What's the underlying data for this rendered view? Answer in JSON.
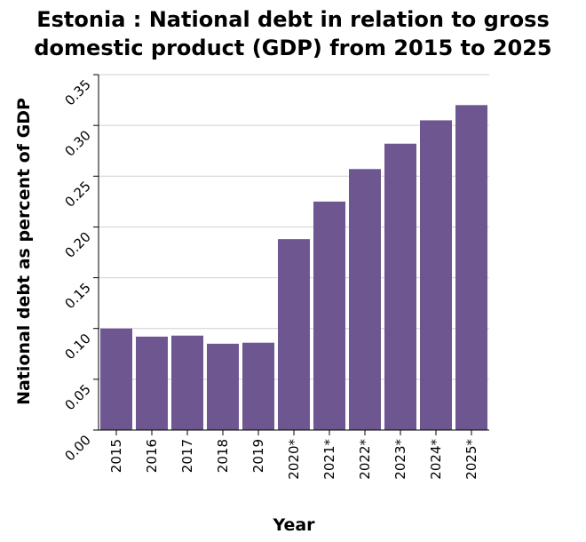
{
  "chart_data": {
    "type": "bar",
    "title_line1": "Estonia : National debt in relation to gross",
    "title_line2": "domestic product (GDP) from 2015 to 2025",
    "xlabel": "Year",
    "ylabel": "National debt as percent of GDP",
    "categories": [
      "2015",
      "2016",
      "2017",
      "2018",
      "2019",
      "2020*",
      "2021*",
      "2022*",
      "2023*",
      "2024*",
      "2025*"
    ],
    "values": [
      0.1,
      0.092,
      0.093,
      0.085,
      0.086,
      0.188,
      0.225,
      0.257,
      0.282,
      0.305,
      0.32
    ],
    "ylim": [
      0,
      0.35
    ],
    "yticks": [
      "0.00",
      "0.05",
      "0.10",
      "0.15",
      "0.20",
      "0.25",
      "0.30",
      "0.35"
    ],
    "grid": true,
    "bar_color": "#6e5691"
  }
}
